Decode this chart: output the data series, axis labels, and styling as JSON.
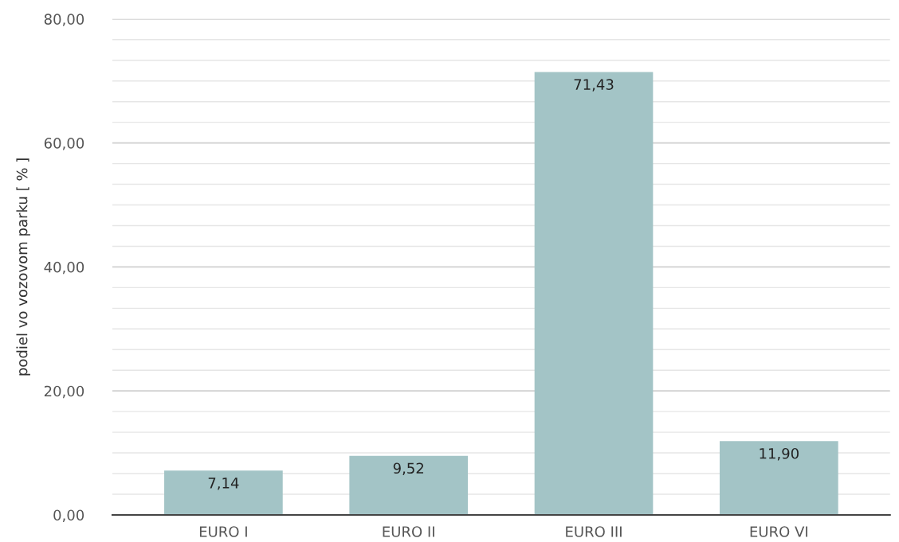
{
  "chart_data": {
    "type": "bar",
    "ylabel": "podiel vo vozovom parku [ % ]",
    "categories": [
      "EURO I",
      "EURO II",
      "EURO III",
      "EURO VI"
    ],
    "values": [
      7.14,
      9.52,
      71.43,
      11.9
    ],
    "value_labels": [
      "7,14",
      "9,52",
      "71,43",
      "11,90"
    ],
    "color": "#a3c4c6",
    "ylim": [
      0,
      80
    ],
    "yticks": [
      {
        "value": 0,
        "label": "0,00"
      },
      {
        "value": 3.333,
        "label": null
      },
      {
        "value": 6.667,
        "label": null
      },
      {
        "value": 10,
        "label": null
      },
      {
        "value": 13.333,
        "label": null
      },
      {
        "value": 16.667,
        "label": null
      },
      {
        "value": 20,
        "label": "20,00"
      },
      {
        "value": 23.333,
        "label": null
      },
      {
        "value": 26.667,
        "label": null
      },
      {
        "value": 30,
        "label": null
      },
      {
        "value": 33.333,
        "label": null
      },
      {
        "value": 36.667,
        "label": null
      },
      {
        "value": 40,
        "label": "40,00"
      },
      {
        "value": 43.333,
        "label": null
      },
      {
        "value": 46.667,
        "label": null
      },
      {
        "value": 50,
        "label": null
      },
      {
        "value": 53.333,
        "label": null
      },
      {
        "value": 56.667,
        "label": null
      },
      {
        "value": 60,
        "label": "60,00"
      },
      {
        "value": 63.333,
        "label": null
      },
      {
        "value": 66.667,
        "label": null
      },
      {
        "value": 70,
        "label": null
      },
      {
        "value": 73.333,
        "label": null
      },
      {
        "value": 76.667,
        "label": null
      },
      {
        "value": 80,
        "label": "80,00"
      }
    ],
    "grid": "y",
    "legend": false
  }
}
